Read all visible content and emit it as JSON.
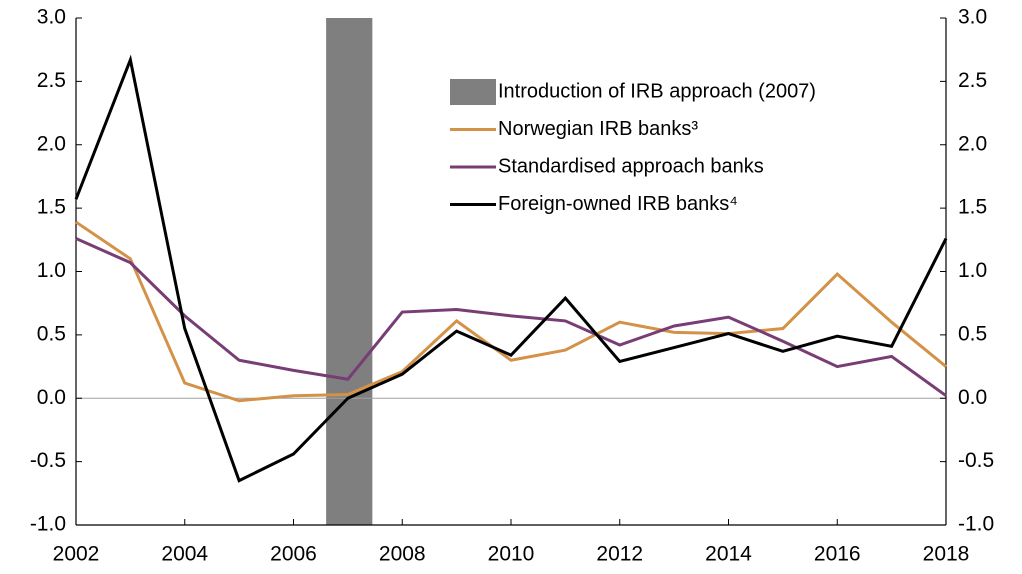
{
  "chart_data": {
    "type": "line",
    "x": [
      2002,
      2003,
      2004,
      2005,
      2006,
      2007,
      2008,
      2009,
      2010,
      2011,
      2012,
      2013,
      2014,
      2015,
      2016,
      2017,
      2018
    ],
    "shade": {
      "name": "Introduction of IRB approach (2007)",
      "color": "#7f7f7f",
      "x": [
        2006.6,
        2007.45
      ]
    },
    "series": [
      {
        "name": "Norwegian IRB banks³",
        "color": "#d39248",
        "values": [
          1.39,
          1.1,
          0.12,
          -0.02,
          0.02,
          0.03,
          0.21,
          0.61,
          0.3,
          0.38,
          0.6,
          0.52,
          0.51,
          0.55,
          0.98,
          0.6,
          0.25
        ]
      },
      {
        "name": "Standardised approach banks",
        "color": "#773d74",
        "values": [
          1.26,
          1.07,
          0.65,
          0.3,
          0.22,
          0.15,
          0.68,
          0.7,
          0.65,
          0.61,
          0.42,
          0.57,
          0.64,
          0.45,
          0.25,
          0.33,
          0.02
        ]
      },
      {
        "name": "Foreign-owned IRB banks⁴",
        "color": "#000000",
        "values": [
          1.57,
          2.67,
          0.55,
          -0.65,
          -0.44,
          0.0,
          0.19,
          0.53,
          0.34,
          0.79,
          0.29,
          0.4,
          0.51,
          0.37,
          0.49,
          0.41,
          1.26
        ]
      }
    ],
    "xlim": [
      2002,
      2018
    ],
    "xticks": [
      2002,
      2004,
      2006,
      2008,
      2010,
      2012,
      2014,
      2016,
      2018
    ],
    "ylim": [
      -1,
      3
    ],
    "yticks": [
      {
        "value": -1,
        "label": "-1.0"
      },
      -0.5,
      {
        "value": 0,
        "label": "0.0"
      },
      0.5,
      {
        "value": 1,
        "label": "1.0"
      },
      1.5,
      {
        "value": 2,
        "label": "2.0"
      },
      2.5,
      {
        "value": 3,
        "label": "3.0"
      }
    ],
    "y2lim": [
      -1,
      3
    ],
    "y2ticks": [
      {
        "value": -1,
        "label": "-1.0"
      },
      -0.5,
      {
        "value": 0,
        "label": "0.0"
      },
      0.5,
      {
        "value": 1,
        "label": "1.0"
      },
      1.5,
      {
        "value": 2,
        "label": "2.0"
      },
      2.5,
      {
        "value": 3,
        "label": "3.0"
      }
    ],
    "zero_line": true,
    "legend": "upper-center"
  }
}
